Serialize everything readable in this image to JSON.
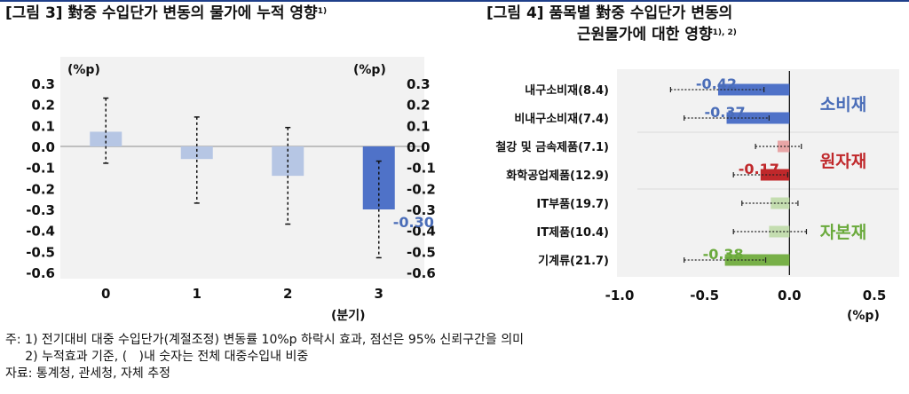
{
  "left_title": "[그림 3] 對중 수입단가 변동의 물가에 누적 영향",
  "left_title_sup": "1)",
  "right_title_line1": "[그림 4] 품목별 對중 수입단가 변동의",
  "right_title_line2": "근원물가에 대한 영향",
  "right_title_sup": "1), 2)",
  "notes": {
    "line1": "주: 1) 전기대비 대중 수입단가(계절조정) 변동률 10%p 하락시 효과, 점선은 95% 신뢰구간을 의미",
    "line2": "     2) 누적효과 기준, (   )내 숫자는 전체 대중수입내 비중",
    "line3": "자료: 통계청, 관세청, 자체 추정"
  },
  "colors": {
    "light_blue": "#b6c6e4",
    "dark_blue": "#4f72c8",
    "label_blue": "#4a6db8",
    "light_red": "#e8a5a6",
    "dark_red": "#c0282b",
    "light_green": "#c4ddb0",
    "mid_green": "#78b048",
    "label_green": "#6aaa3c"
  },
  "chart_data": [
    {
      "type": "bar",
      "title": "[그림 3] 對중 수입단가 변동의 물가에 누적 영향",
      "categories": [
        "0",
        "1",
        "2",
        "3"
      ],
      "values": [
        0.07,
        -0.06,
        -0.14,
        -0.3
      ],
      "ci_low": [
        -0.08,
        -0.27,
        -0.37,
        -0.53
      ],
      "ci_high": [
        0.23,
        0.14,
        0.09,
        -0.07
      ],
      "unit_label": "(%p)",
      "xlabel": "(분기)",
      "ylim": [
        -0.6,
        0.3
      ],
      "yticks": [
        "0.3",
        "0.2",
        "0.1",
        "0.0",
        "-0.1",
        "-0.2",
        "-0.3",
        "-0.4",
        "-0.5",
        "-0.6"
      ],
      "annotation": "-0.30",
      "grid": false
    },
    {
      "type": "bar",
      "orientation": "horizontal",
      "title": "[그림 4] 품목별 對중 수입단가 변동의 근원물가에 대한 영향",
      "categories": [
        "내구소비재(8.4)",
        "비내구소비재(7.4)",
        "철강 및 금속제품(7.1)",
        "화학공업제품(12.9)",
        "IT부품(19.7)",
        "IT제품(10.4)",
        "기계류(21.7)"
      ],
      "values": [
        -0.42,
        -0.37,
        -0.07,
        -0.17,
        -0.11,
        -0.12,
        -0.38
      ],
      "ci_low": [
        -0.7,
        -0.62,
        -0.2,
        -0.33,
        -0.28,
        -0.33,
        -0.62
      ],
      "ci_high": [
        -0.15,
        -0.12,
        0.07,
        -0.01,
        0.05,
        0.1,
        -0.14
      ],
      "value_labels": [
        "-0.42",
        "-0.37",
        "",
        "-0.17",
        "",
        "",
        "-0.38"
      ],
      "groups": [
        {
          "name": "소비재",
          "rows": [
            0,
            1
          ]
        },
        {
          "name": "원자재",
          "rows": [
            2,
            3
          ]
        },
        {
          "name": "자본재",
          "rows": [
            4,
            5,
            6
          ]
        }
      ],
      "xlim": [
        -1.0,
        0.5
      ],
      "xticks": [
        "-1.0",
        "-0.5",
        "0.0",
        "0.5"
      ],
      "unit_label": "(%p)",
      "grid": false
    }
  ]
}
